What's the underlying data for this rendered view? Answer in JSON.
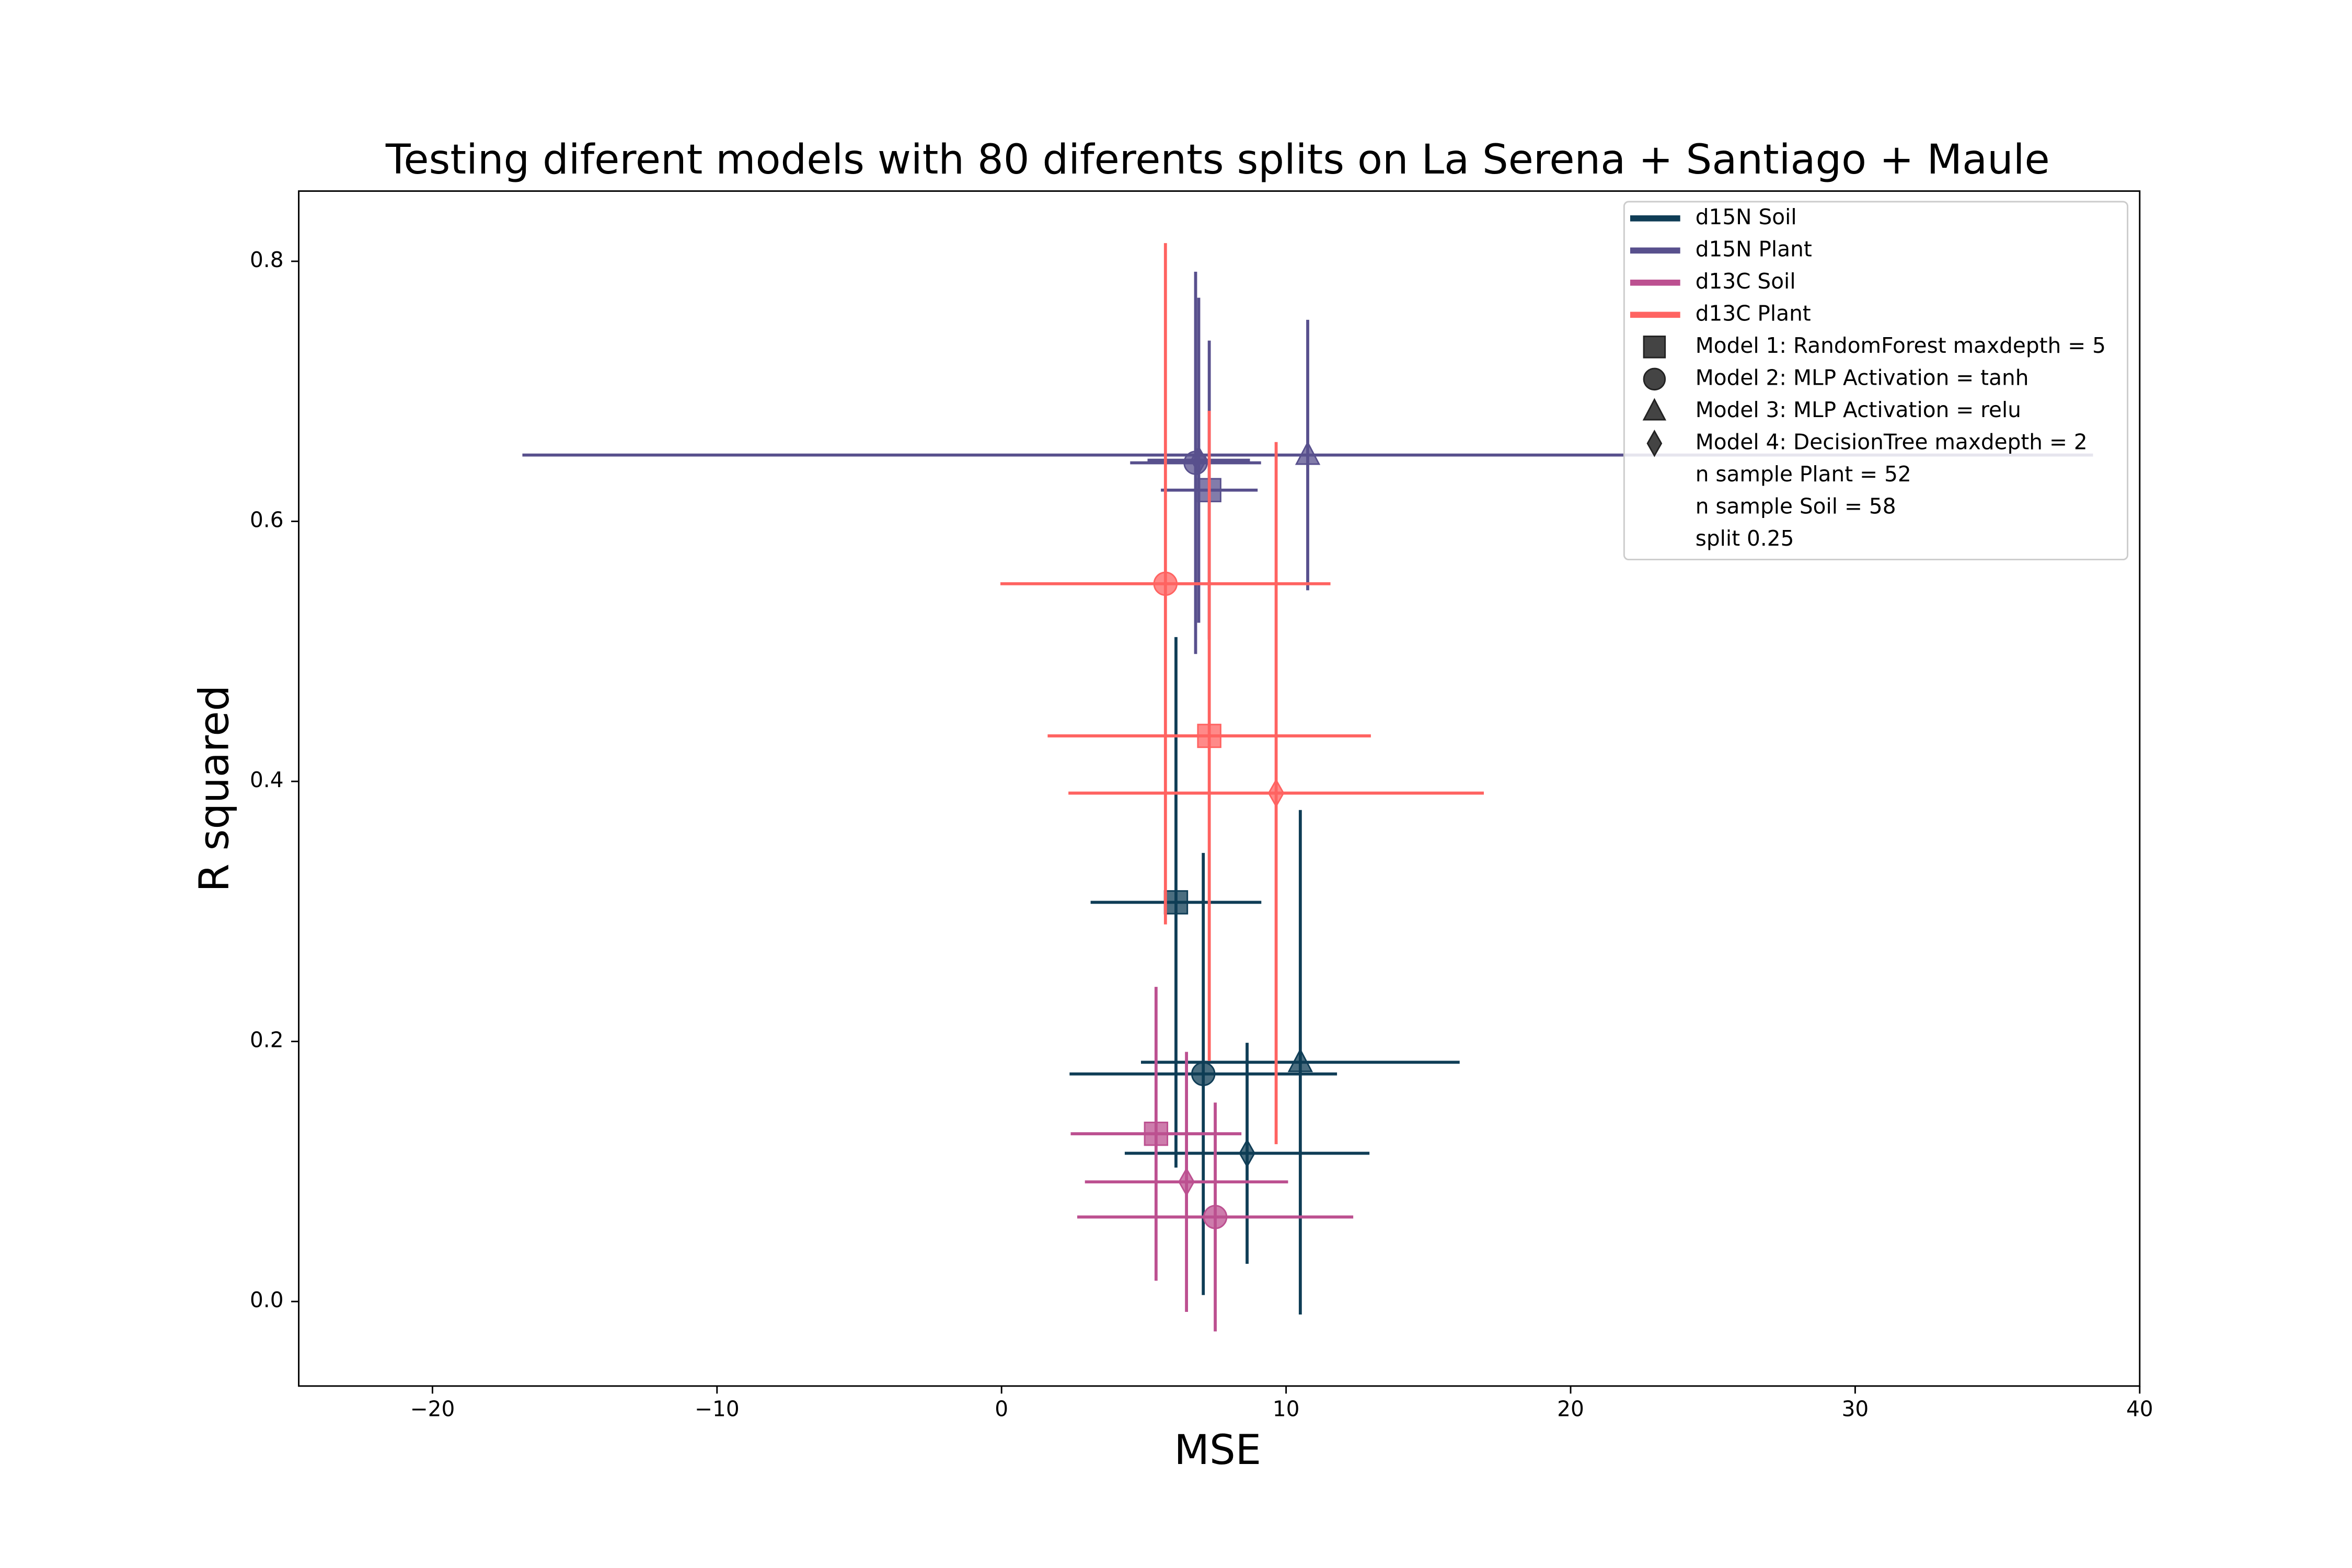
{
  "chart_data": {
    "type": "errorbar-scatter",
    "title": "Testing diferent models with 80 diferents splits on La Serena + Santiago + Maule",
    "x_label": "MSE",
    "y_label": "R squared",
    "xlim": [
      -24.7,
      40
    ],
    "ylim": [
      -0.065,
      0.854
    ],
    "xticks": [
      {
        "value": -20,
        "label": "−20"
      },
      {
        "value": -10,
        "label": "−10"
      },
      0,
      10,
      20,
      30,
      40
    ],
    "yticks": [
      {
        "value": 0,
        "label": "0.0"
      },
      0.2,
      0.4,
      0.6,
      0.8
    ],
    "grid": false,
    "legend_position": "upper right",
    "models": [
      {
        "label": "Model 1: RandomForest maxdepth = 5",
        "marker": "square"
      },
      {
        "label": "Model 2: MLP Activation = tanh",
        "marker": "circle"
      },
      {
        "label": "Model 3: MLP Activation = relu",
        "marker": "triangle"
      },
      {
        "label": "Model 4: DecisionTree maxdepth = 2",
        "marker": "diamond"
      }
    ],
    "annotations": [
      "n sample Plant = 52",
      "n sample Soil = 58",
      "split 0.25"
    ],
    "series": [
      {
        "name": "d15N Soil",
        "color": "#0f3d56",
        "x": [
          6.13,
          7.09,
          10.5,
          8.63
        ],
        "values": [
          0.307,
          0.175,
          0.184,
          0.114
        ],
        "xerr": [
          3.0,
          4.7,
          5.6,
          4.3
        ],
        "yerr": [
          0.204,
          0.17,
          0.194,
          0.085
        ]
      },
      {
        "name": "d15N Plant",
        "color": "#58508d",
        "x": [
          7.3,
          6.82,
          10.76,
          6.93
        ],
        "values": [
          0.624,
          0.645,
          0.651,
          0.647
        ],
        "xerr": [
          1.7,
          2.3,
          27.6,
          1.8
        ],
        "yerr": [
          0.115,
          0.147,
          0.104,
          0.125
        ]
      },
      {
        "name": "d13C Soil",
        "color": "#bc5090",
        "x": [
          5.43,
          7.51,
          null,
          6.5
        ],
        "values": [
          0.129,
          0.065,
          null,
          0.092
        ],
        "xerr": [
          3.0,
          4.85,
          null,
          3.57
        ],
        "yerr": [
          0.113,
          0.088,
          null,
          0.1
        ]
      },
      {
        "name": "d13C Plant",
        "color": "#ff6361",
        "x": [
          7.3,
          5.76,
          null,
          9.65
        ],
        "values": [
          0.435,
          0.552,
          null,
          0.391
        ],
        "xerr": [
          5.68,
          5.8,
          null,
          7.3
        ],
        "yerr": [
          0.25,
          0.262,
          null,
          0.27
        ]
      }
    ]
  }
}
